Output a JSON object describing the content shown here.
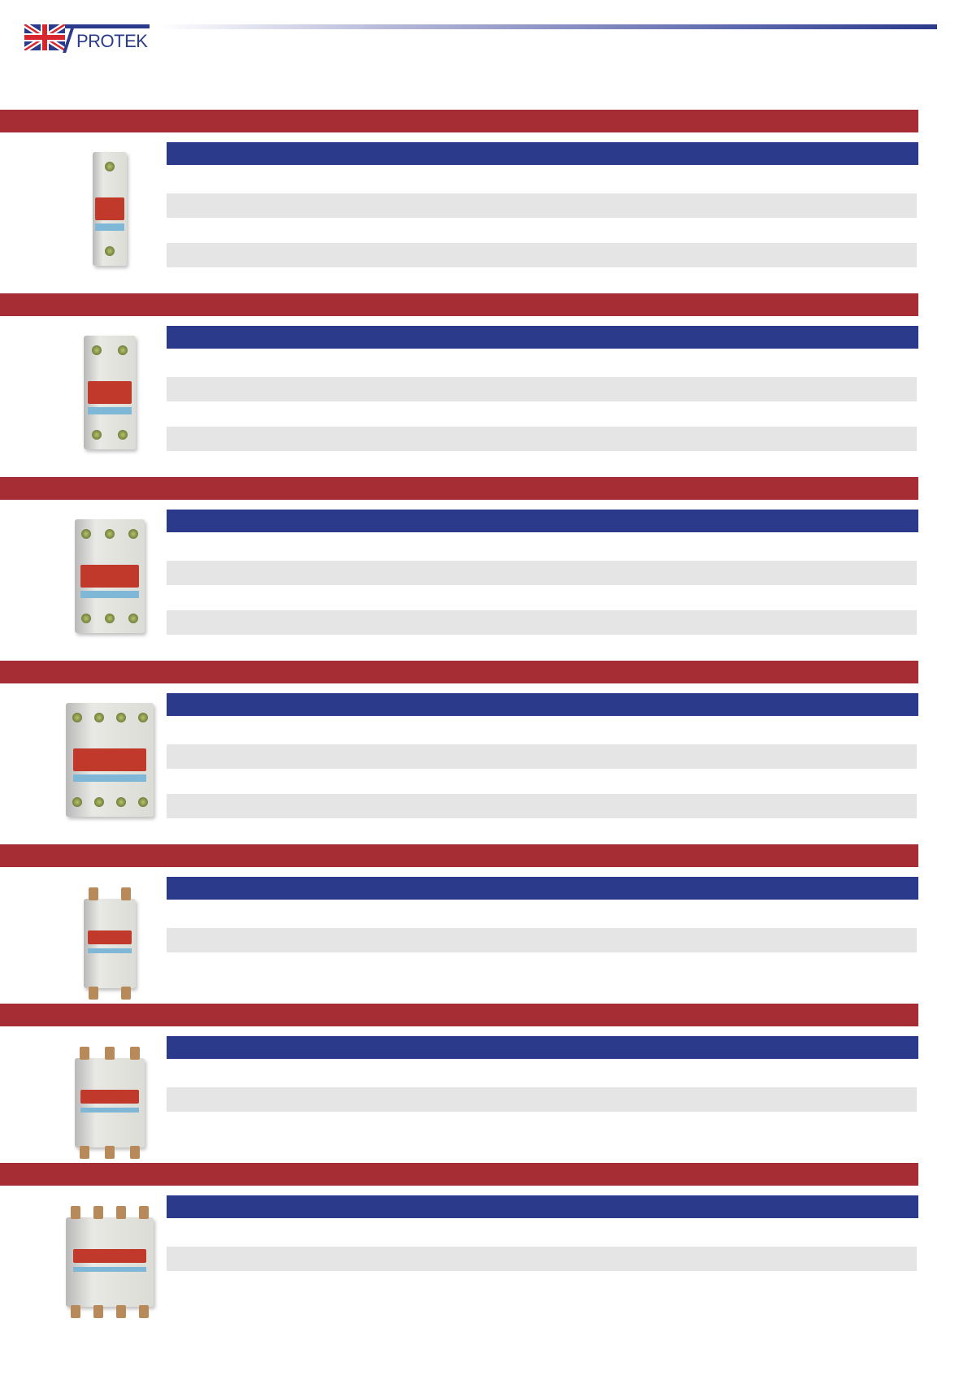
{
  "header": {
    "logo_text": "PROTEK",
    "logo_icon": "union-jack-flag"
  },
  "colors": {
    "section_bar": "#a52d33",
    "sub_bar": "#2b3a8a",
    "row_stripe": "#e5e5e5"
  },
  "sections": [
    {
      "product_image": "1-pole-isolator-switch",
      "poles": 1,
      "stripe_rows": 2,
      "style": "din"
    },
    {
      "product_image": "2-pole-isolator-switch",
      "poles": 2,
      "stripe_rows": 2,
      "style": "din"
    },
    {
      "product_image": "3-pole-isolator-switch",
      "poles": 3,
      "stripe_rows": 2,
      "style": "din"
    },
    {
      "product_image": "4-pole-isolator-switch",
      "poles": 4,
      "stripe_rows": 2,
      "style": "din"
    },
    {
      "product_image": "2-pole-high-current-isolator",
      "poles": 2,
      "stripe_rows": 1,
      "style": "lug"
    },
    {
      "product_image": "3-pole-high-current-isolator",
      "poles": 3,
      "stripe_rows": 1,
      "style": "lug"
    },
    {
      "product_image": "4-pole-high-current-isolator",
      "poles": 4,
      "stripe_rows": 1,
      "style": "lug"
    }
  ]
}
